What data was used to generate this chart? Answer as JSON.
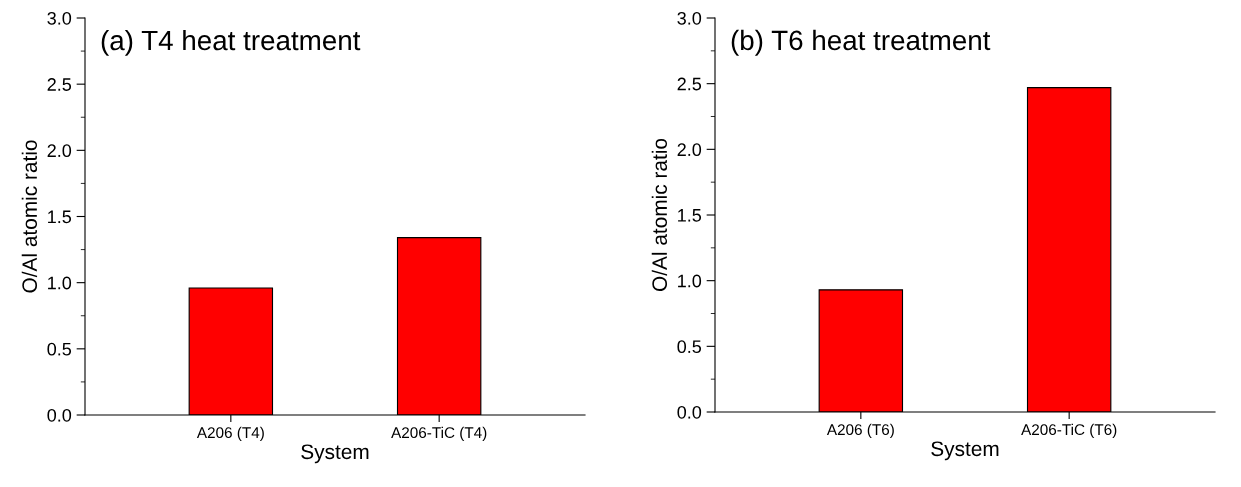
{
  "chart_data": [
    {
      "type": "bar",
      "title": "(a) T4 heat treatment",
      "xlabel": "System",
      "ylabel": "O/Al atomic ratio",
      "categories": [
        "A206 (T4)",
        "A206-TiC (T4)"
      ],
      "values": [
        0.96,
        1.34
      ],
      "color": "#ff0000",
      "ylim": [
        0,
        3
      ],
      "yticks": [
        {
          "value": 0,
          "label": "0.0"
        },
        {
          "value": 0.5,
          "label": "0.5"
        },
        {
          "value": 1,
          "label": "1.0"
        },
        {
          "value": 1.5,
          "label": "1.5"
        },
        {
          "value": 2,
          "label": "2.0"
        },
        {
          "value": 2.5,
          "label": "2.5"
        },
        {
          "value": 3,
          "label": "3.0"
        }
      ],
      "grid": false
    },
    {
      "type": "bar",
      "title": "(b) T6 heat treatment",
      "xlabel": "System",
      "ylabel": "O/Al atomic ratio",
      "categories": [
        "A206 (T6)",
        "A206-TiC (T6)"
      ],
      "values": [
        0.93,
        2.47
      ],
      "color": "#ff0000",
      "ylim": [
        0,
        3
      ],
      "yticks": [
        {
          "value": 0,
          "label": "0.0"
        },
        {
          "value": 0.5,
          "label": "0.5"
        },
        {
          "value": 1,
          "label": "1.0"
        },
        {
          "value": 1.5,
          "label": "1.5"
        },
        {
          "value": 2,
          "label": "2.0"
        },
        {
          "value": 2.5,
          "label": "2.5"
        },
        {
          "value": 3,
          "label": "3.0"
        }
      ],
      "grid": false
    }
  ]
}
